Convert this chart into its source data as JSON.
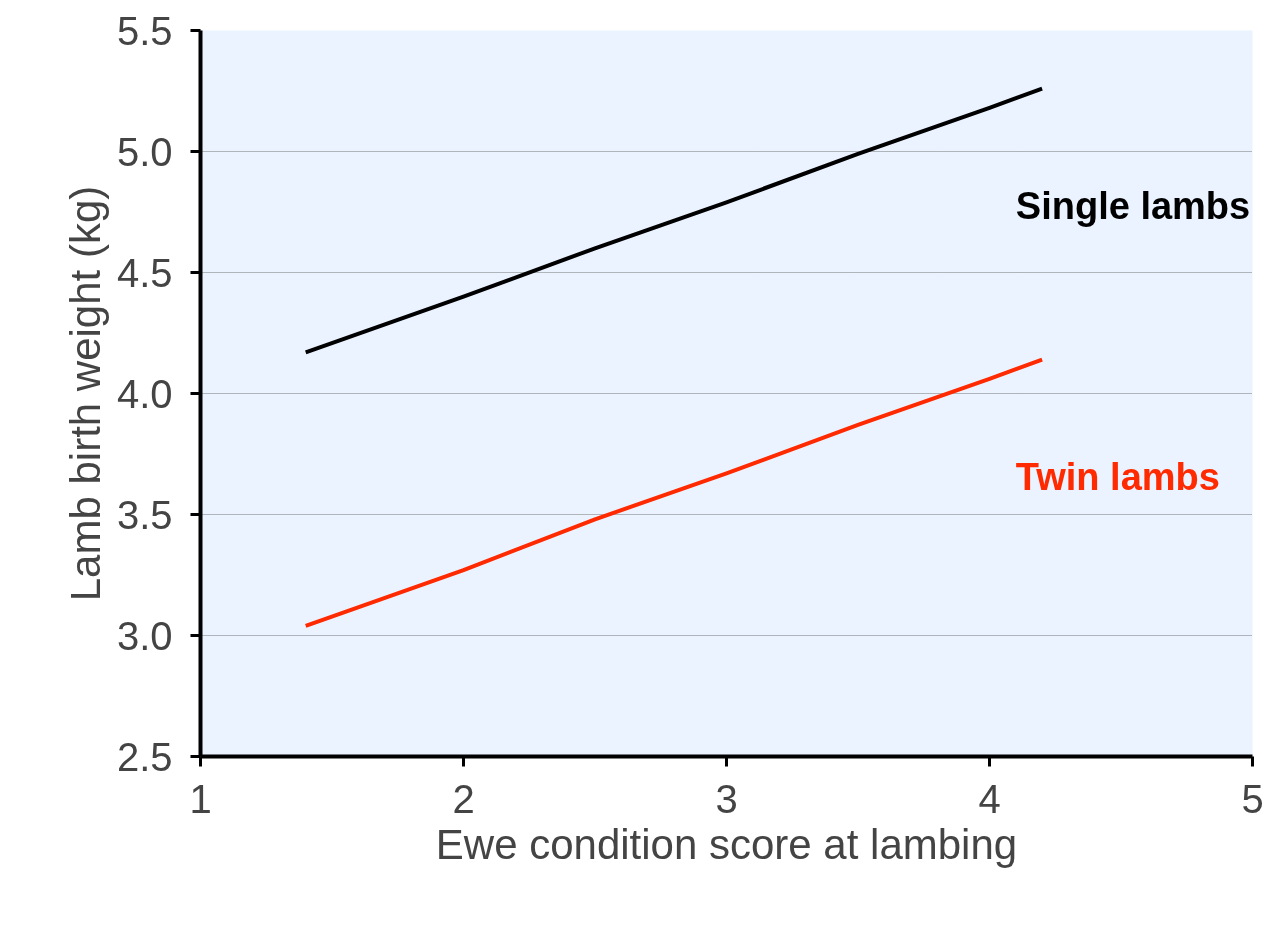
{
  "chart_data": {
    "type": "line",
    "xlabel": "Ewe condition score at lambing",
    "ylabel": "Lamb birth weight (kg)",
    "xlim": [
      1,
      5
    ],
    "xticks": [
      1,
      2,
      3,
      4,
      5
    ],
    "ylim": [
      2.5,
      5.5
    ],
    "yticks": [
      {
        "value": 2.5,
        "label": "2.5"
      },
      {
        "value": 3.0,
        "label": "3.0"
      },
      {
        "value": 3.5,
        "label": "3.5"
      },
      {
        "value": 4.0,
        "label": "4.0"
      },
      {
        "value": 4.5,
        "label": "4.5"
      },
      {
        "value": 5.0,
        "label": "5.0"
      },
      {
        "value": 5.5,
        "label": "5.5"
      }
    ],
    "grid": "y",
    "line_style": "solid",
    "marker": "none",
    "x": [
      1.4,
      2,
      2.5,
      3,
      3.5,
      4,
      4.2
    ],
    "series": [
      {
        "name": "Single lambs",
        "color": "#000000",
        "values": [
          4.17,
          4.4,
          4.6,
          4.79,
          4.99,
          5.18,
          5.26
        ]
      },
      {
        "name": "Twin lambs",
        "color": "#ff2a00",
        "values": [
          3.04,
          3.27,
          3.48,
          3.67,
          3.87,
          4.06,
          4.14
        ]
      }
    ]
  }
}
